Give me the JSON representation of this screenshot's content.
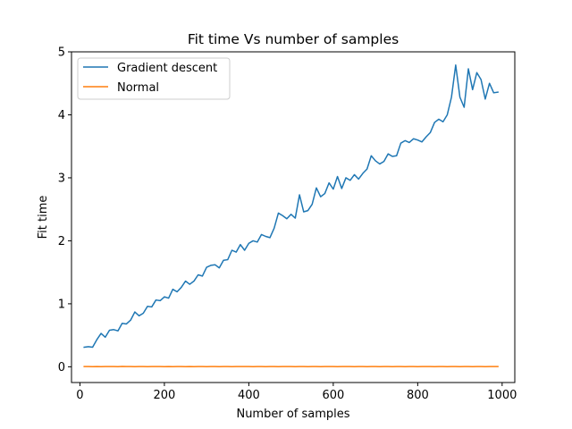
{
  "chart_data": {
    "type": "line",
    "title": "Fit time Vs number of samples",
    "xlabel": "Number of samples",
    "ylabel": "Fit time",
    "xlim": [
      -20,
      1030
    ],
    "ylim": [
      -0.25,
      5.0
    ],
    "xticks": [
      0,
      200,
      400,
      600,
      800,
      1000
    ],
    "yticks": [
      0,
      1,
      2,
      3,
      4,
      5
    ],
    "grid": false,
    "legend_position": "upper-left",
    "x": [
      10,
      20,
      30,
      40,
      50,
      60,
      70,
      80,
      90,
      100,
      110,
      120,
      130,
      140,
      150,
      160,
      170,
      180,
      190,
      200,
      210,
      220,
      230,
      240,
      250,
      260,
      270,
      280,
      290,
      300,
      310,
      320,
      330,
      340,
      350,
      360,
      370,
      380,
      390,
      400,
      410,
      420,
      430,
      440,
      450,
      460,
      470,
      480,
      490,
      500,
      510,
      520,
      530,
      540,
      550,
      560,
      570,
      580,
      590,
      600,
      610,
      620,
      630,
      640,
      650,
      660,
      670,
      680,
      690,
      700,
      710,
      720,
      730,
      740,
      750,
      760,
      770,
      780,
      790,
      800,
      810,
      820,
      830,
      840,
      850,
      860,
      870,
      880,
      890,
      900,
      910,
      920,
      930,
      940,
      950,
      960,
      970,
      980,
      990
    ],
    "series": [
      {
        "name": "Gradient descent",
        "color": "#1f77b4",
        "values": [
          0.31,
          0.32,
          0.31,
          0.43,
          0.53,
          0.47,
          0.58,
          0.59,
          0.57,
          0.69,
          0.68,
          0.74,
          0.87,
          0.81,
          0.85,
          0.96,
          0.95,
          1.06,
          1.05,
          1.11,
          1.09,
          1.23,
          1.19,
          1.26,
          1.36,
          1.31,
          1.36,
          1.46,
          1.44,
          1.58,
          1.61,
          1.62,
          1.57,
          1.69,
          1.7,
          1.85,
          1.82,
          1.94,
          1.85,
          1.96,
          2.0,
          1.98,
          2.1,
          2.07,
          2.05,
          2.2,
          2.44,
          2.4,
          2.35,
          2.42,
          2.36,
          2.73,
          2.46,
          2.48,
          2.58,
          2.84,
          2.7,
          2.75,
          2.92,
          2.82,
          3.02,
          2.83,
          3.0,
          2.96,
          3.05,
          2.98,
          3.07,
          3.14,
          3.35,
          3.27,
          3.22,
          3.26,
          3.38,
          3.34,
          3.35,
          3.55,
          3.59,
          3.56,
          3.62,
          3.6,
          3.57,
          3.65,
          3.72,
          3.88,
          3.93,
          3.89,
          4.0,
          4.28,
          4.79,
          4.28,
          4.12,
          4.73,
          4.4,
          4.67,
          4.56,
          4.25,
          4.5,
          4.35,
          4.36
        ]
      },
      {
        "name": "Normal",
        "color": "#ff7f0e",
        "values": [
          0.004,
          0.003,
          0.002,
          0.003,
          0.001,
          0.003,
          0.004,
          0.003,
          0.002,
          0.005,
          0.004,
          0.003,
          0.002,
          0.003,
          0.004,
          0.002,
          0.003,
          0.003,
          0.004,
          0.002,
          0.003,
          0.002,
          0.004,
          0.003,
          0.002,
          0.003,
          0.002,
          0.003,
          0.003,
          0.002,
          0.004,
          0.003,
          0.002,
          0.003,
          0.004,
          0.002,
          0.003,
          0.004,
          0.003,
          0.003,
          0.002,
          0.003,
          0.003,
          0.002,
          0.004,
          0.003,
          0.002,
          0.003,
          0.004,
          0.003,
          0.002,
          0.003,
          0.004,
          0.002,
          0.003,
          0.003,
          0.002,
          0.003,
          0.004,
          0.003,
          0.002,
          0.003,
          0.003,
          0.004,
          0.002,
          0.003,
          0.003,
          0.002,
          0.004,
          0.003,
          0.002,
          0.003,
          0.003,
          0.002,
          0.004,
          0.003,
          0.002,
          0.003,
          0.003,
          0.002,
          0.004,
          0.003,
          0.003,
          0.002,
          0.003,
          0.004,
          0.002,
          0.003,
          0.003,
          0.002,
          0.004,
          0.003,
          0.002,
          0.003,
          0.003,
          0.002,
          0.004,
          0.003,
          0.003
        ]
      }
    ]
  }
}
